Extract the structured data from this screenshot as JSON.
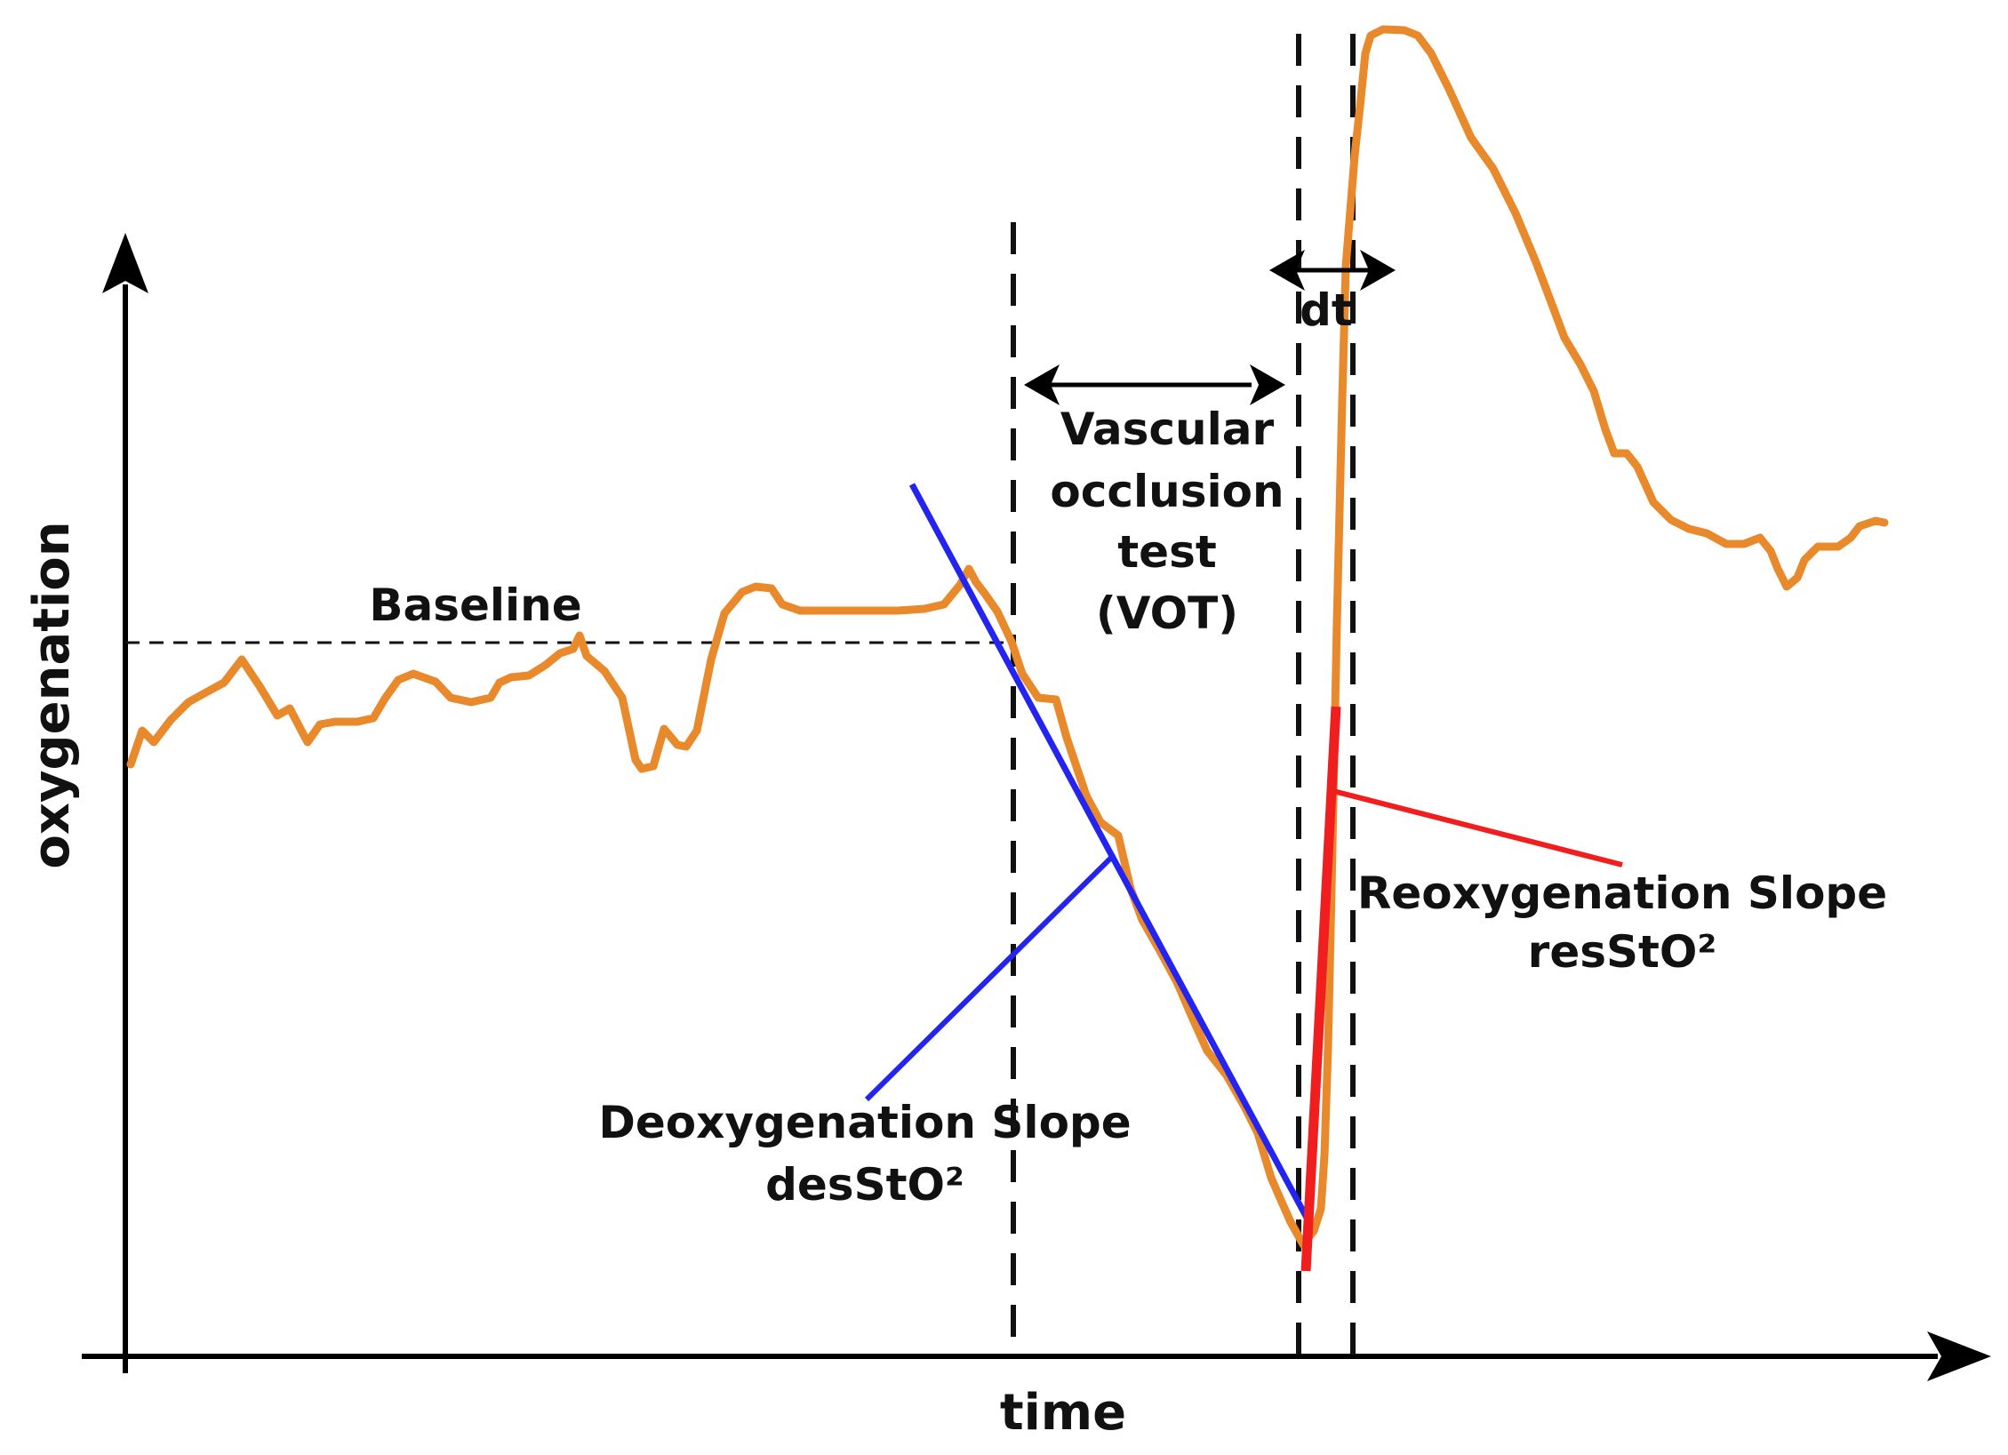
{
  "axes": {
    "x_label": "time",
    "y_label": "oxygenation"
  },
  "annotations": {
    "baseline": "Baseline",
    "vot_lines": [
      "Vascular",
      "occlusion",
      "test",
      "(VOT)"
    ],
    "dt": "dt",
    "deoxygenation_title": "Deoxygenation Slope",
    "deoxygenation_symbol": "desStO²",
    "reoxygenation_title": "Reoxygenation Slope",
    "reoxygenation_symbol": "resStO²"
  },
  "colors": {
    "curve": "#E8892B",
    "deoxygenation": "#2424F0",
    "reoxygenation": "#F01E1E",
    "axis": "#000000"
  }
}
